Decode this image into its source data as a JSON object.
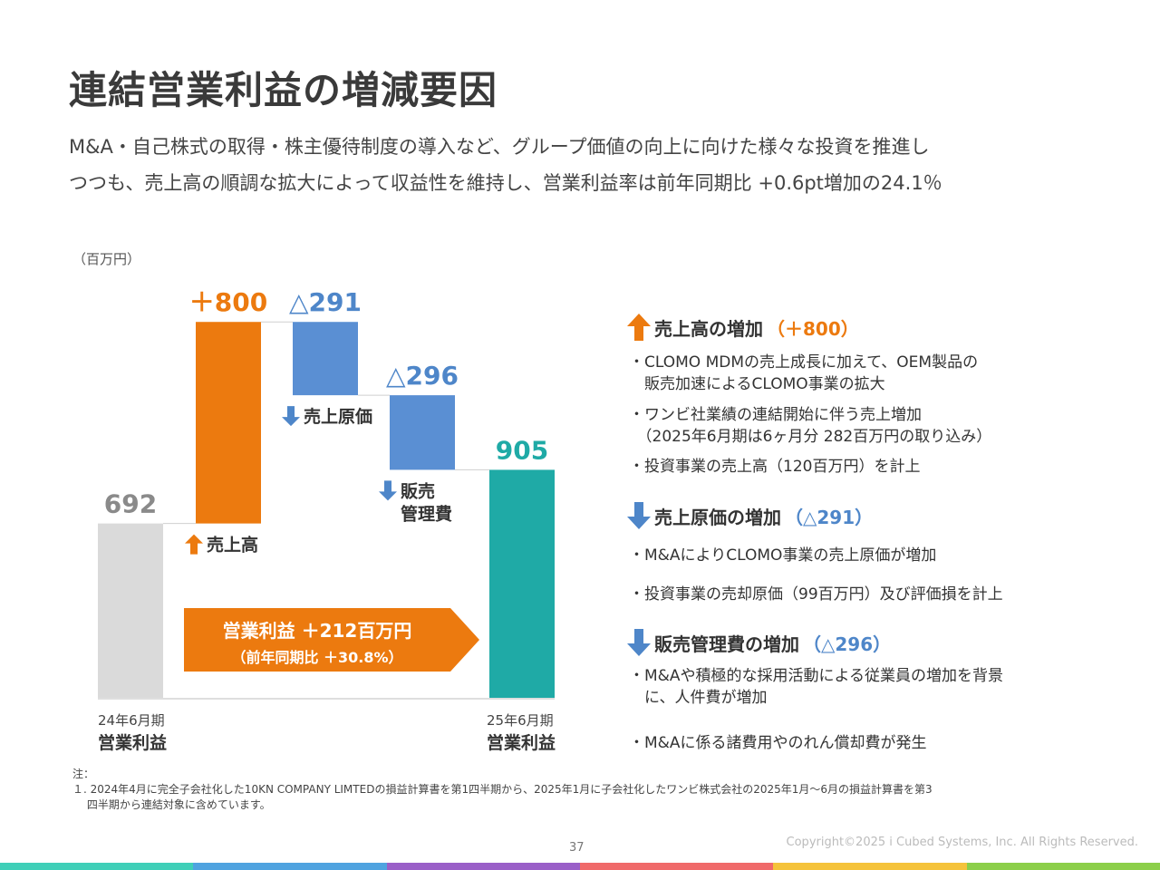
{
  "title": "連結営業利益の増減要因",
  "lead": [
    "M&A・自己株式の取得・株主優待制度の導入など、グループ価値の向上に向けた様々な投資を推進し",
    "つつも、売上高の順調な拡大によって収益性を維持し、営業利益率は前年同期比 +0.6pt増加の24.1％"
  ],
  "unit": "（百万円）",
  "chart_data": {
    "type": "waterfall",
    "ylim": [
      0,
      1600
    ],
    "steps": [
      {
        "label": "692",
        "value": 692,
        "kind": "total",
        "color": "#dadada",
        "label_color": "#8a8a8a"
      },
      {
        "label": "＋800",
        "value": 800,
        "kind": "increase",
        "color": "#ec7a0f",
        "label_color": "#ec7a0f",
        "note": "売上高",
        "note_icon": "arrow-up"
      },
      {
        "label": "△291",
        "value": -291,
        "kind": "decrease",
        "color": "#5a8fd3",
        "label_color": "#4e86c9",
        "note": "売上原価",
        "note_icon": "arrow-down"
      },
      {
        "label": "△296",
        "value": -296,
        "kind": "decrease",
        "color": "#5a8fd3",
        "label_color": "#4e86c9",
        "note": "販売\n管理費",
        "note_icon": "arrow-down"
      },
      {
        "label": "905",
        "value": 905,
        "kind": "total",
        "color": "#1faaa6",
        "label_color": "#1faaa6"
      }
    ],
    "x_labels": [
      {
        "line1": "24年6月期",
        "line2": "営業利益"
      },
      {
        "line1": "25年6月期",
        "line2": "営業利益"
      }
    ],
    "callout": {
      "line1": "営業利益 ＋212百万円",
      "line2": "（前年同期比 ＋30.8%）",
      "color": "#ec7a0f"
    }
  },
  "right": {
    "sec1": {
      "heading": "売上高の増加",
      "amount": "（＋800）",
      "bullets": [
        [
          "・CLOMO MDMの売上成長に加えて、OEM製品の",
          "　販売加速によるCLOMO事業の拡大"
        ],
        [
          "・ワンビ社業績の連結開始に伴う売上増加",
          "　（2025年6月期は6ヶ月分 282百万円の取り込み）"
        ],
        [
          "・投資事業の売上高（120百万円）を計上"
        ]
      ]
    },
    "sec2": {
      "heading": "売上原価の増加",
      "amount": "（△291）",
      "bullets": [
        [
          "・M&AによりCLOMO事業の売上原価が増加"
        ],
        [
          "・投資事業の売却原価（99百万円）及び評価損を計上"
        ]
      ]
    },
    "sec3": {
      "heading": "販売管理費の増加",
      "amount": "（△296）",
      "bullets": [
        [
          "・M&Aや積極的な採用活動による従業員の増加を背景",
          "　に、人件費が増加"
        ],
        [
          "・M&Aに係る諸費用やのれん償却費が発生"
        ]
      ]
    }
  },
  "notes": {
    "label": "注：",
    "line1": "１. 2024年4月に完全子会社化した10KN COMPANY LIMTEDの損益計算書を第1四半期から、2025年1月に子会社化したワンビ株式会社の2025年1月～6月の損益計算書を第3",
    "line2": "　 四半期から連結対象に含めています。"
  },
  "page_number": "37",
  "copyright": "Copyright©2025 i Cubed Systems, Inc. All Rights Reserved.",
  "band_colors": [
    "#3fcfb8",
    "#4fa3e0",
    "#9a5fc8",
    "#f06a6a",
    "#f5c33b",
    "#8ccf4a"
  ]
}
